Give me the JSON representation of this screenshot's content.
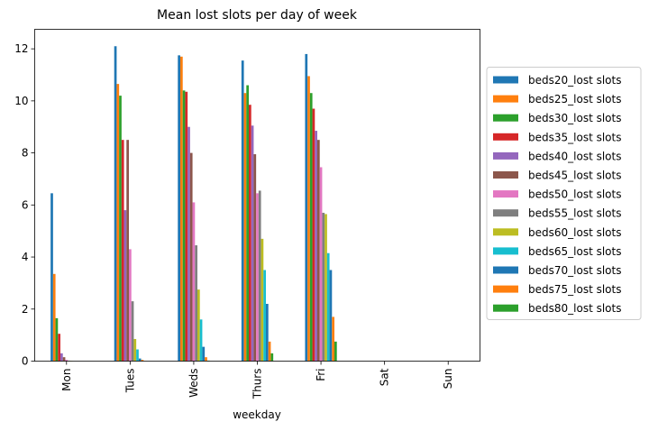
{
  "chart_data": {
    "type": "bar",
    "title": "Mean lost slots per day of week",
    "xlabel": "weekday",
    "ylabel": "",
    "ylim": [
      0,
      12.75
    ],
    "yticks": [
      0,
      2,
      4,
      6,
      8,
      10,
      12
    ],
    "grid": false,
    "legend_position": "right",
    "categories": [
      "Mon",
      "Tues",
      "Weds",
      "Thurs",
      "Fri",
      "Sat",
      "Sun"
    ],
    "series": [
      {
        "name": "beds20_lost slots",
        "color": "#1f77b4",
        "values": [
          6.45,
          12.1,
          11.75,
          11.55,
          11.8,
          0,
          0
        ]
      },
      {
        "name": "beds25_lost slots",
        "color": "#ff7f0e",
        "values": [
          3.35,
          10.65,
          11.7,
          10.3,
          10.95,
          0,
          0
        ]
      },
      {
        "name": "beds30_lost slots",
        "color": "#2ca02c",
        "values": [
          1.65,
          10.2,
          10.4,
          10.6,
          10.3,
          0,
          0
        ]
      },
      {
        "name": "beds35_lost slots",
        "color": "#d62728",
        "values": [
          1.05,
          8.5,
          10.35,
          9.85,
          9.7,
          0,
          0
        ]
      },
      {
        "name": "beds40_lost slots",
        "color": "#9467bd",
        "values": [
          0.3,
          5.8,
          9.0,
          9.05,
          8.85,
          0,
          0
        ]
      },
      {
        "name": "beds45_lost slots",
        "color": "#8c564b",
        "values": [
          0.15,
          8.5,
          8.0,
          7.95,
          8.5,
          0,
          0
        ]
      },
      {
        "name": "beds50_lost slots",
        "color": "#e377c2",
        "values": [
          0.05,
          4.3,
          6.1,
          6.45,
          7.45,
          0,
          0
        ]
      },
      {
        "name": "beds55_lost slots",
        "color": "#7f7f7f",
        "values": [
          0.02,
          2.3,
          4.45,
          6.55,
          5.7,
          0,
          0
        ]
      },
      {
        "name": "beds60_lost slots",
        "color": "#bcbd22",
        "values": [
          0.01,
          0.85,
          2.75,
          4.7,
          5.65,
          0,
          0
        ]
      },
      {
        "name": "beds65_lost slots",
        "color": "#17becf",
        "values": [
          0.0,
          0.45,
          1.6,
          3.5,
          4.15,
          0,
          0
        ]
      },
      {
        "name": "beds70_lost slots",
        "color": "#1f77b4",
        "values": [
          0.0,
          0.1,
          0.55,
          2.2,
          3.5,
          0,
          0
        ]
      },
      {
        "name": "beds75_lost slots",
        "color": "#ff7f0e",
        "values": [
          0.0,
          0.05,
          0.15,
          0.75,
          1.7,
          0,
          0
        ]
      },
      {
        "name": "beds80_lost slots",
        "color": "#2ca02c",
        "values": [
          0.0,
          0.0,
          0.02,
          0.3,
          0.75,
          0,
          0
        ]
      }
    ]
  }
}
